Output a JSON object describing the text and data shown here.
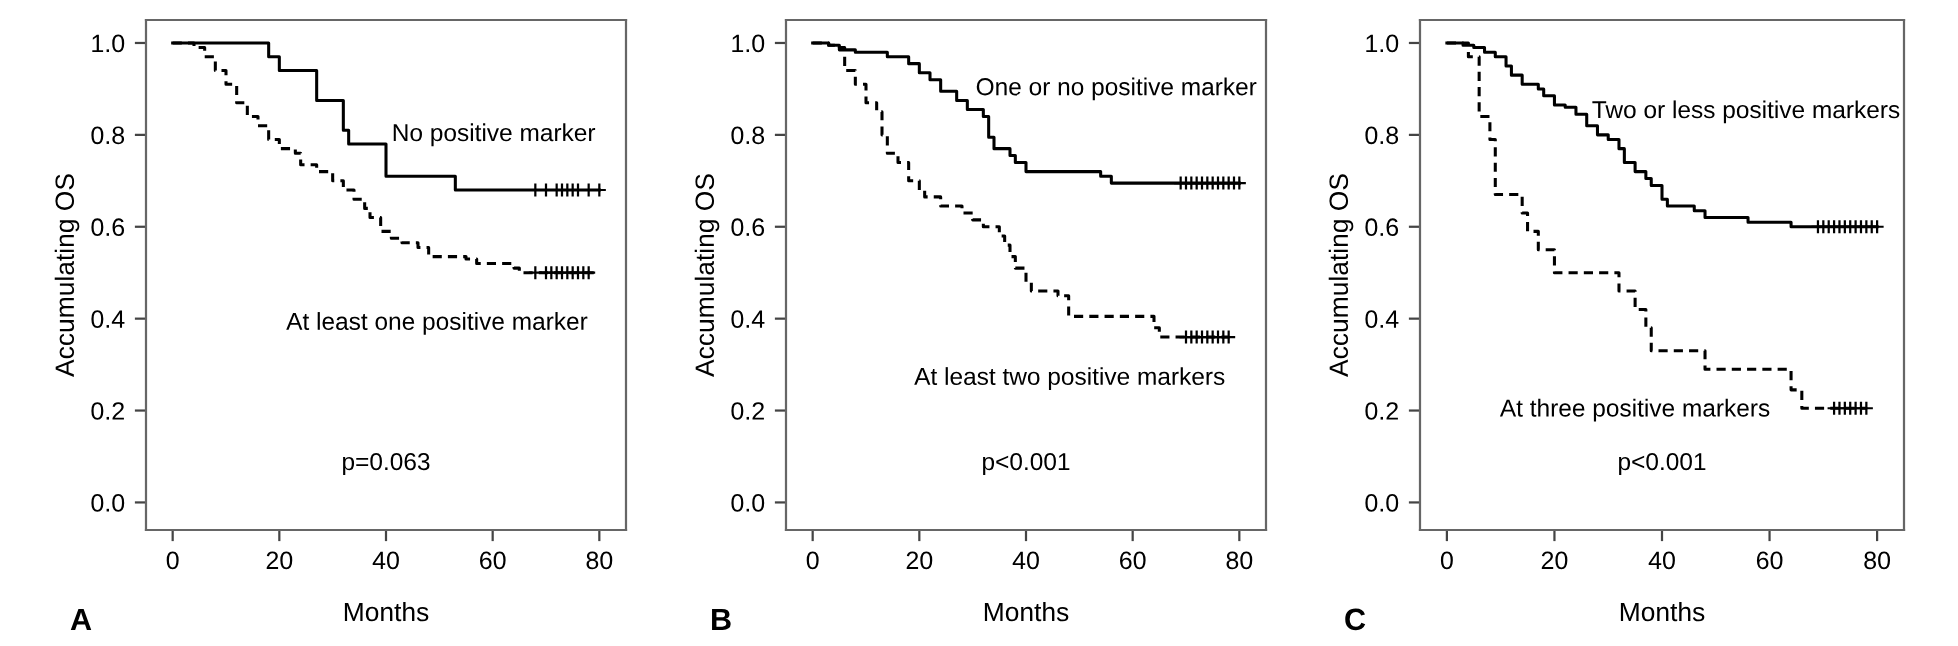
{
  "chart_data": [
    {
      "type": "step",
      "xlabel": "Months",
      "ylabel": "Accumulating OS",
      "xlim": [
        -5,
        85
      ],
      "ylim": [
        -0.06,
        1.05
      ],
      "xticks": [
        0,
        20,
        40,
        60,
        80
      ],
      "yticks": [
        {
          "value": 0,
          "label": "0.0"
        },
        {
          "value": 0.2,
          "label": "0.2"
        },
        {
          "value": 0.4,
          "label": "0.4"
        },
        {
          "value": 0.6,
          "label": "0.6"
        },
        {
          "value": 0.8,
          "label": "0.8"
        },
        {
          "value": 1,
          "label": "1.0"
        }
      ],
      "grid": false,
      "series": [
        {
          "color": "#000000",
          "line_style": "solid",
          "x": [
            0,
            18,
            20,
            27,
            32,
            33,
            40,
            53,
            80
          ],
          "values": [
            1,
            0.97,
            0.94,
            0.875,
            0.81,
            0.78,
            0.71,
            0.68,
            0.68
          ]
        },
        {
          "color": "#000000",
          "line_style": "dashed",
          "x": [
            0,
            4,
            6,
            8,
            10,
            12,
            14,
            16,
            18,
            20,
            23,
            24,
            27,
            30,
            32,
            34,
            36,
            37,
            39,
            41,
            43,
            46,
            48,
            55,
            57,
            64,
            65,
            79
          ],
          "values": [
            1,
            0.99,
            0.97,
            0.94,
            0.91,
            0.87,
            0.84,
            0.82,
            0.79,
            0.77,
            0.76,
            0.735,
            0.72,
            0.7,
            0.68,
            0.66,
            0.64,
            0.62,
            0.59,
            0.575,
            0.565,
            0.555,
            0.535,
            0.53,
            0.52,
            0.51,
            0.5,
            0.5
          ]
        },
        {
          "type": "scatter",
          "marker": "cross",
          "color": "#000000",
          "x": [
            68,
            70,
            72,
            73,
            74,
            75,
            76,
            78,
            80
          ],
          "values": [
            0.68,
            0.68,
            0.68,
            0.68,
            0.68,
            0.68,
            0.68,
            0.68,
            0.68
          ]
        },
        {
          "type": "scatter",
          "marker": "cross",
          "color": "#000000",
          "x": [
            68,
            70,
            71,
            72,
            73,
            74,
            75,
            76,
            77,
            78
          ],
          "values": [
            0.5,
            0.5,
            0.5,
            0.5,
            0.5,
            0.5,
            0.5,
            0.5,
            0.5,
            0.5
          ]
        }
      ],
      "annotations": [
        "No positive marker",
        "At least one positive marker",
        "p=0.063",
        "A"
      ]
    },
    {
      "type": "step",
      "xlabel": "Months",
      "ylabel": "Accumulating OS",
      "xlim": [
        -5,
        85
      ],
      "ylim": [
        -0.06,
        1.05
      ],
      "xticks": [
        0,
        20,
        40,
        60,
        80
      ],
      "yticks": [
        {
          "value": 0,
          "label": "0.0"
        },
        {
          "value": 0.2,
          "label": "0.2"
        },
        {
          "value": 0.4,
          "label": "0.4"
        },
        {
          "value": 0.6,
          "label": "0.6"
        },
        {
          "value": 0.8,
          "label": "0.8"
        },
        {
          "value": 1,
          "label": "1.0"
        }
      ],
      "grid": false,
      "series": [
        {
          "color": "#000000",
          "line_style": "solid",
          "x": [
            0,
            3,
            5,
            8,
            14,
            18,
            20,
            22,
            24,
            27,
            29,
            32,
            33,
            34,
            37,
            38,
            40,
            54,
            56,
            80
          ],
          "values": [
            1,
            0.995,
            0.985,
            0.98,
            0.97,
            0.955,
            0.935,
            0.92,
            0.895,
            0.875,
            0.855,
            0.84,
            0.795,
            0.77,
            0.755,
            0.74,
            0.72,
            0.71,
            0.695,
            0.695
          ]
        },
        {
          "color": "#000000",
          "line_style": "dashed",
          "x": [
            0,
            3,
            5,
            6,
            8,
            10,
            12,
            13,
            14,
            16,
            18,
            20,
            21,
            24,
            28,
            30,
            32,
            35,
            36,
            37,
            38,
            40,
            41,
            46,
            48,
            64,
            65,
            78
          ],
          "values": [
            1,
            0.995,
            0.99,
            0.94,
            0.91,
            0.87,
            0.85,
            0.8,
            0.76,
            0.74,
            0.7,
            0.68,
            0.665,
            0.645,
            0.63,
            0.615,
            0.6,
            0.58,
            0.56,
            0.535,
            0.51,
            0.48,
            0.46,
            0.45,
            0.405,
            0.38,
            0.36,
            0.36
          ]
        },
        {
          "type": "scatter",
          "marker": "cross",
          "color": "#000000",
          "x": [
            69,
            70,
            71,
            72,
            73,
            74,
            75,
            76,
            77,
            78,
            79,
            80
          ],
          "values": [
            0.695,
            0.695,
            0.695,
            0.695,
            0.695,
            0.695,
            0.695,
            0.695,
            0.695,
            0.695,
            0.695,
            0.695
          ]
        },
        {
          "type": "scatter",
          "marker": "cross",
          "color": "#000000",
          "x": [
            70,
            71,
            72,
            73,
            74,
            75,
            76,
            77,
            78
          ],
          "values": [
            0.36,
            0.36,
            0.36,
            0.36,
            0.36,
            0.36,
            0.36,
            0.36,
            0.36
          ]
        }
      ],
      "annotations": [
        "One or no positive marker",
        "At least two positive markers",
        "p<0.001",
        "B"
      ]
    },
    {
      "type": "step",
      "xlabel": "Months",
      "ylabel": "Accumulating OS",
      "xlim": [
        -5,
        85
      ],
      "ylim": [
        -0.06,
        1.05
      ],
      "xticks": [
        0,
        20,
        40,
        60,
        80
      ],
      "yticks": [
        {
          "value": 0,
          "label": "0.0"
        },
        {
          "value": 0.2,
          "label": "0.2"
        },
        {
          "value": 0.4,
          "label": "0.4"
        },
        {
          "value": 0.6,
          "label": "0.6"
        },
        {
          "value": 0.8,
          "label": "0.8"
        },
        {
          "value": 1,
          "label": "1.0"
        }
      ],
      "grid": false,
      "series": [
        {
          "color": "#000000",
          "line_style": "solid",
          "x": [
            0,
            3,
            5,
            7,
            9,
            11,
            12,
            14,
            17,
            18,
            20,
            22,
            24,
            26,
            28,
            30,
            32,
            33,
            35,
            37,
            38,
            40,
            41,
            46,
            48,
            56,
            64,
            80
          ],
          "values": [
            1,
            0.995,
            0.99,
            0.98,
            0.97,
            0.95,
            0.93,
            0.91,
            0.9,
            0.885,
            0.865,
            0.86,
            0.845,
            0.82,
            0.8,
            0.79,
            0.77,
            0.74,
            0.72,
            0.705,
            0.69,
            0.66,
            0.645,
            0.635,
            0.62,
            0.61,
            0.6,
            0.6
          ]
        },
        {
          "color": "#000000",
          "line_style": "dashed",
          "x": [
            0,
            4,
            6,
            8,
            9,
            14,
            15,
            17,
            20,
            32,
            35,
            37,
            38,
            48,
            64,
            66,
            78
          ],
          "values": [
            1,
            0.97,
            0.84,
            0.79,
            0.67,
            0.63,
            0.59,
            0.55,
            0.5,
            0.46,
            0.42,
            0.38,
            0.33,
            0.29,
            0.245,
            0.205,
            0.205
          ]
        },
        {
          "type": "scatter",
          "marker": "cross",
          "color": "#000000",
          "x": [
            69,
            70,
            71,
            72,
            73,
            74,
            75,
            76,
            77,
            78,
            79,
            80
          ],
          "values": [
            0.6,
            0.6,
            0.6,
            0.6,
            0.6,
            0.6,
            0.6,
            0.6,
            0.6,
            0.6,
            0.6,
            0.6
          ]
        },
        {
          "type": "scatter",
          "marker": "cross",
          "color": "#000000",
          "x": [
            72,
            73,
            74,
            75,
            76,
            77,
            78
          ],
          "values": [
            0.205,
            0.205,
            0.205,
            0.205,
            0.205,
            0.205,
            0.205
          ]
        }
      ],
      "annotations": [
        "Two or less positive markers",
        "At three positive markers",
        "p<0.001",
        "C"
      ]
    }
  ]
}
